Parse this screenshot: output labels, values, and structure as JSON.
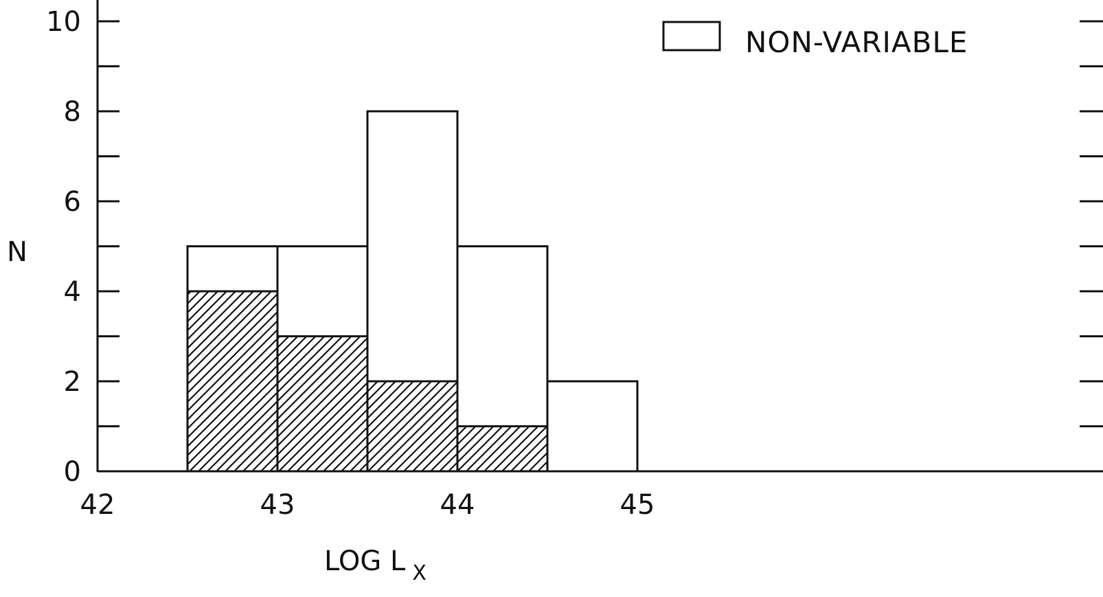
{
  "chart_data": {
    "type": "bar",
    "stacked": true,
    "bins": [
      {
        "x0": 42.5,
        "x1": 43.0
      },
      {
        "x0": 43.0,
        "x1": 43.5
      },
      {
        "x0": 43.5,
        "x1": 44.0
      },
      {
        "x0": 44.0,
        "x1": 44.5
      },
      {
        "x0": 44.5,
        "x1": 45.0
      }
    ],
    "series": [
      {
        "pattern": "hatched",
        "values": [
          4,
          3,
          2,
          1,
          0
        ]
      },
      {
        "name": "NON-VARIABLE",
        "pattern": "open",
        "values": [
          1,
          2,
          6,
          4,
          2
        ]
      }
    ],
    "totals": [
      5,
      5,
      8,
      5,
      2
    ],
    "xlim": [
      42,
      48
    ],
    "ylim": [
      0,
      10
    ],
    "x_ticks": [
      "42",
      "43",
      "44",
      "45"
    ],
    "y_ticks": [
      "0",
      "2",
      "4",
      "6",
      "8",
      "10"
    ],
    "xlabel": "LOG L",
    "xlabel_subscript": "X",
    "ylabel": "N",
    "legend_position": "top-right",
    "grid": false
  },
  "colors": {
    "ink": "#111111",
    "background": "#ffffff"
  }
}
